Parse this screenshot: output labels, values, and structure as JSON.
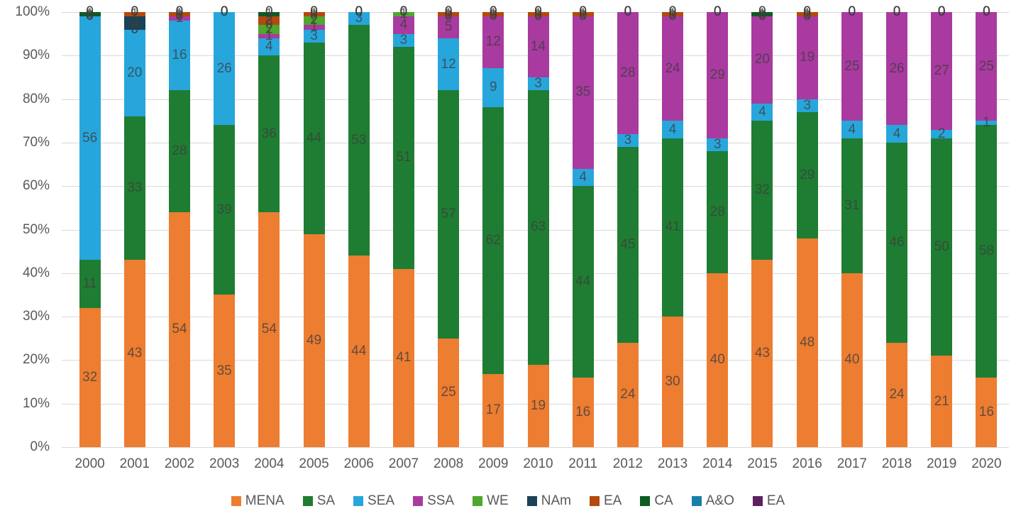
{
  "chart_data": {
    "type": "bar",
    "variant": "stacked-100-percent-column",
    "title": "",
    "xlabel": "",
    "ylabel": "",
    "y_axis": {
      "tick_labels": [
        "0%",
        "10%",
        "20%",
        "30%",
        "40%",
        "50%",
        "60%",
        "70%",
        "80%",
        "90%",
        "100%"
      ],
      "min": 0,
      "max": 100,
      "grid": true,
      "gridline_color": "#d9d9d9",
      "axis_text_color": "#595959"
    },
    "legend_position": "bottom",
    "data_label_color": "#3e3e3e",
    "categories": [
      "2000",
      "2001",
      "2002",
      "2003",
      "2004",
      "2005",
      "2006",
      "2007",
      "2008",
      "2009",
      "2010",
      "2011",
      "2012",
      "2013",
      "2014",
      "2015",
      "2016",
      "2017",
      "2018",
      "2019",
      "2020"
    ],
    "series": [
      {
        "name": "MENA",
        "color": "#ED7D31",
        "values": [
          32,
          43,
          54,
          35,
          54,
          49,
          44,
          41,
          25,
          17,
          19,
          16,
          24,
          30,
          40,
          43,
          48,
          40,
          24,
          21,
          16
        ]
      },
      {
        "name": "SA",
        "color": "#1E7D32",
        "values": [
          11,
          33,
          28,
          39,
          36,
          44,
          53,
          51,
          57,
          62,
          63,
          44,
          45,
          41,
          28,
          32,
          29,
          31,
          46,
          50,
          58
        ]
      },
      {
        "name": "SEA",
        "color": "#27A6DC",
        "values": [
          56,
          20,
          16,
          26,
          4,
          3,
          3,
          3,
          12,
          9,
          3,
          4,
          3,
          4,
          3,
          4,
          3,
          4,
          4,
          2,
          1
        ]
      },
      {
        "name": "SSA",
        "color": "#A93AA0",
        "values": [
          0,
          0,
          1,
          0,
          1,
          1,
          0,
          4,
          5,
          12,
          14,
          35,
          28,
          24,
          29,
          20,
          19,
          25,
          26,
          27,
          25
        ]
      },
      {
        "name": "WE",
        "color": "#4EA72E",
        "values": [
          0,
          0,
          0,
          0,
          2,
          2,
          0,
          1,
          0,
          0,
          0,
          0,
          0,
          0,
          0,
          0,
          0,
          0,
          0,
          0,
          0
        ]
      },
      {
        "name": "NAm",
        "color": "#1B4257",
        "values": [
          0,
          3,
          0,
          0,
          0,
          0,
          0,
          0,
          0,
          0,
          0,
          0,
          0,
          0,
          0,
          0,
          0,
          0,
          0,
          0,
          0
        ]
      },
      {
        "name": "EA",
        "color": "#B3490E",
        "values": [
          0,
          1,
          1,
          0,
          2,
          1,
          0,
          0,
          1,
          1,
          1,
          1,
          0,
          1,
          0,
          0,
          1,
          0,
          0,
          0,
          0
        ]
      },
      {
        "name": "CA",
        "color": "#0E5B24",
        "values": [
          1,
          0,
          0,
          0,
          1,
          0,
          0,
          0,
          0,
          0,
          0,
          0,
          0,
          0,
          0,
          1,
          0,
          0,
          0,
          0,
          0
        ]
      },
      {
        "name": "A&O",
        "color": "#1A7FA8",
        "values": [
          0,
          0,
          0,
          0,
          0,
          0,
          0,
          0,
          0,
          0,
          0,
          0,
          0,
          0,
          0,
          0,
          0,
          0,
          0,
          0,
          0
        ]
      },
      {
        "name": "EA",
        "color": "#5C2161",
        "values": [
          0,
          0,
          0,
          0,
          0,
          0,
          0,
          0,
          0,
          0,
          0,
          0,
          0,
          0,
          0,
          0,
          0,
          0,
          0,
          0,
          0
        ]
      }
    ]
  }
}
